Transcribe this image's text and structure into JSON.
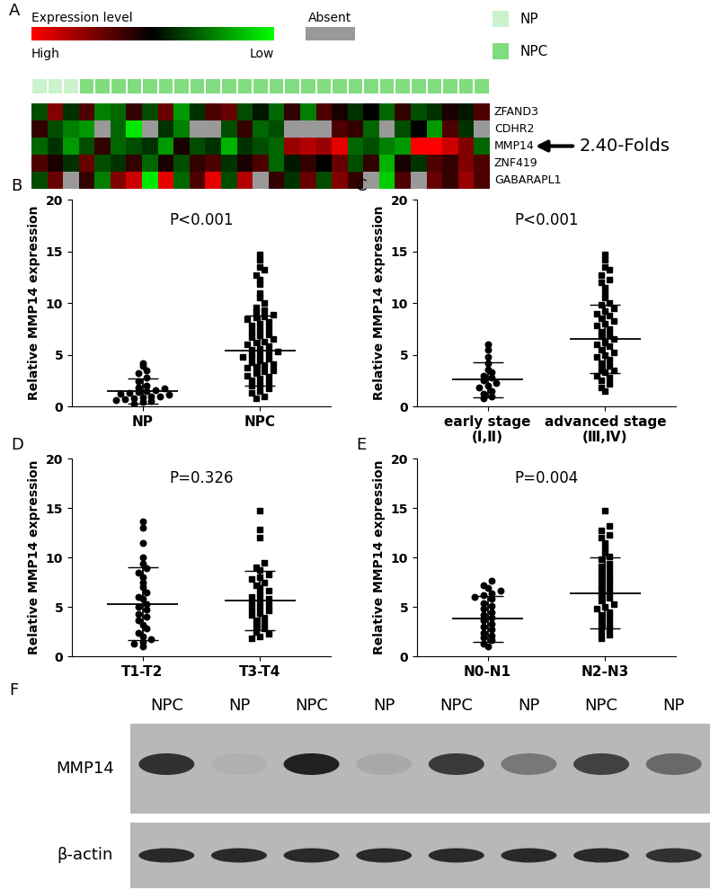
{
  "chart_data": [
    {
      "type": "heatmap",
      "panel_label": "A",
      "rows": [
        "ZFAND3",
        "CDHR2",
        "MMP14",
        "ZNF419",
        "GABARAPL1"
      ],
      "values": [
        [
          -0.3,
          0.5,
          -0.2,
          0.3,
          -0.5,
          -0.4,
          0.2,
          -0.3,
          0.4,
          -0.6,
          -0.2,
          0.3,
          0.4,
          -0.3,
          -0.1,
          -0.4,
          0.2,
          -0.5,
          0.3,
          0.1,
          -0.2,
          0.0,
          -0.4,
          0.2,
          -0.3,
          -0.2,
          0.1,
          -0.1,
          0.3
        ],
        [
          0.2,
          -0.3,
          -0.5,
          -0.6,
          null,
          -0.4,
          -0.9,
          null,
          -0.2,
          -0.5,
          null,
          null,
          -0.3,
          0.2,
          -0.4,
          -0.3,
          null,
          null,
          null,
          0.3,
          0.2,
          -0.4,
          null,
          -0.3,
          0.0,
          -0.6,
          0.3,
          -0.2,
          null
        ],
        [
          -0.4,
          -0.2,
          -0.6,
          -0.3,
          0.2,
          -0.4,
          -0.3,
          -0.2,
          -0.6,
          0.1,
          -0.3,
          -0.2,
          -0.7,
          -0.2,
          -0.3,
          -0.4,
          0.6,
          0.7,
          0.6,
          0.9,
          -0.4,
          -0.3,
          -0.5,
          -0.6,
          1.0,
          1.0,
          0.8,
          0.5,
          -0.4
        ],
        [
          0.3,
          0.1,
          -0.2,
          0.4,
          -0.3,
          -0.2,
          0.2,
          -0.4,
          0.1,
          -0.3,
          0.2,
          0.3,
          -0.2,
          0.1,
          0.3,
          -0.4,
          -0.1,
          0.2,
          0.0,
          0.4,
          -0.3,
          0.2,
          -0.7,
          0.1,
          -0.2,
          0.3,
          0.2,
          0.5,
          0.3
        ],
        [
          -0.3,
          0.4,
          null,
          0.2,
          -0.5,
          0.5,
          0.8,
          -0.9,
          0.9,
          -0.4,
          0.3,
          0.9,
          -0.3,
          0.7,
          null,
          0.2,
          -0.2,
          0.4,
          -0.3,
          0.5,
          0.2,
          null,
          -0.8,
          0.3,
          null,
          0.4,
          0.2,
          0.6,
          0.3
        ]
      ],
      "color_range": [
        -1,
        1
      ],
      "colorbar": {
        "title": "Expression level",
        "labels": [
          "High",
          "Low"
        ]
      },
      "absent_label": "Absent",
      "groups": [
        {
          "name": "NP",
          "color": "#ccf2cc"
        },
        {
          "name": "NPC",
          "color": "#7fdc7f"
        }
      ],
      "sample_groups": [
        "NP",
        "NP",
        "NP",
        "NPC",
        "NPC",
        "NPC",
        "NPC",
        "NPC",
        "NPC",
        "NPC",
        "NPC",
        "NPC",
        "NPC",
        "NPC",
        "NPC",
        "NPC",
        "NPC",
        "NPC",
        "NPC",
        "NPC",
        "NPC",
        "NPC",
        "NPC",
        "NPC",
        "NPC",
        "NPC",
        "NPC",
        "NPC",
        "NPC"
      ],
      "annotation": {
        "text": "2.40-Folds",
        "row": "MMP14"
      }
    },
    {
      "type": "dot_plot",
      "panel_label": "B",
      "categories": [
        "NP",
        "NPC"
      ],
      "ylabel": "Relative MMP14 expression",
      "ylim": [
        0,
        20
      ],
      "yticks": [
        0,
        5,
        10,
        15,
        20
      ],
      "annotation": "P<0.001",
      "color": "#000000",
      "groups": [
        {
          "marker": "circle",
          "mean": 1.5,
          "sd": 1.2,
          "values": [
            0.3,
            0.4,
            0.5,
            0.6,
            0.7,
            0.8,
            0.9,
            1.0,
            1.0,
            1.1,
            1.2,
            1.3,
            1.4,
            1.5,
            1.6,
            1.7,
            1.8,
            2.0,
            2.4,
            2.8,
            3.2,
            3.5,
            3.9,
            4.2
          ]
        },
        {
          "marker": "square",
          "mean": 5.4,
          "sd": 3.4,
          "values": [
            0.8,
            1.0,
            1.3,
            1.5,
            1.7,
            2.0,
            2.1,
            2.3,
            2.5,
            2.7,
            2.9,
            3.0,
            3.2,
            3.4,
            3.5,
            3.7,
            3.8,
            4.0,
            4.1,
            4.3,
            4.4,
            4.6,
            4.8,
            4.9,
            5.0,
            5.2,
            5.3,
            5.5,
            5.6,
            5.8,
            6.0,
            6.2,
            6.3,
            6.5,
            6.7,
            6.9,
            7.0,
            7.2,
            7.4,
            7.6,
            7.8,
            8.0,
            8.2,
            8.4,
            8.6,
            8.7,
            8.9,
            9.1,
            9.3,
            9.6,
            10.0,
            10.5,
            11.0,
            11.8,
            12.3,
            12.7,
            13.2,
            13.5,
            14.2,
            14.7
          ]
        }
      ]
    },
    {
      "type": "dot_plot",
      "panel_label": "C",
      "categories": [
        "early stage\n(Ⅰ,Ⅱ)",
        "advanced stage\n(Ⅲ,Ⅳ)"
      ],
      "ylabel": "Relative MMP14 expression",
      "ylim": [
        0,
        20
      ],
      "yticks": [
        0,
        5,
        10,
        15,
        20
      ],
      "annotation": "P<0.001",
      "color": "#000000",
      "groups": [
        {
          "marker": "circle",
          "mean": 2.6,
          "sd": 1.7,
          "values": [
            0.8,
            1.0,
            1.2,
            1.5,
            1.8,
            2.0,
            2.3,
            2.5,
            2.8,
            3.0,
            3.3,
            3.6,
            4.2,
            4.8,
            5.5,
            6.0
          ]
        },
        {
          "marker": "square",
          "mean": 6.5,
          "sd": 3.3,
          "values": [
            1.5,
            1.8,
            2.2,
            2.5,
            2.8,
            3.0,
            3.3,
            3.6,
            3.9,
            4.2,
            4.5,
            4.8,
            5.0,
            5.2,
            5.5,
            5.8,
            6.0,
            6.2,
            6.5,
            6.8,
            7.0,
            7.2,
            7.5,
            7.8,
            8.0,
            8.3,
            8.5,
            8.8,
            9.0,
            9.2,
            9.5,
            9.8,
            10.0,
            10.5,
            11.0,
            11.5,
            12.0,
            12.3,
            12.7,
            13.2,
            13.5,
            14.2,
            14.7,
            3.5
          ]
        }
      ]
    },
    {
      "type": "dot_plot",
      "panel_label": "D",
      "categories": [
        "T1-T2",
        "T3-T4"
      ],
      "ylabel": "Relative MMP14 expression",
      "ylim": [
        0,
        20
      ],
      "yticks": [
        0,
        5,
        10,
        15,
        20
      ],
      "annotation": "P=0.326",
      "color": "#000000",
      "groups": [
        {
          "marker": "circle",
          "mean": 5.3,
          "sd": 3.7,
          "values": [
            1.0,
            1.3,
            1.5,
            1.7,
            2.0,
            2.4,
            2.8,
            3.2,
            3.6,
            4.0,
            4.3,
            4.7,
            5.0,
            5.3,
            5.8,
            6.0,
            6.5,
            7.0,
            7.5,
            8.0,
            8.5,
            8.9,
            9.4,
            10.0,
            11.5,
            13.0,
            13.6
          ]
        },
        {
          "marker": "square",
          "mean": 5.6,
          "sd": 3.0,
          "values": [
            1.8,
            2.0,
            2.3,
            2.5,
            2.8,
            3.0,
            3.3,
            3.6,
            3.9,
            4.2,
            4.4,
            4.6,
            4.8,
            5.0,
            5.2,
            5.4,
            5.6,
            5.8,
            6.0,
            6.3,
            6.6,
            6.9,
            7.2,
            7.5,
            7.8,
            8.0,
            8.3,
            8.7,
            9.0,
            9.5,
            12.0,
            12.8,
            14.7
          ]
        }
      ]
    },
    {
      "type": "dot_plot",
      "panel_label": "E",
      "categories": [
        "N0-N1",
        "N2-N3"
      ],
      "ylabel": "Relative MMP14 expression",
      "ylim": [
        0,
        20
      ],
      "yticks": [
        0,
        5,
        10,
        15,
        20
      ],
      "annotation": "P=0.004",
      "color": "#000000",
      "groups": [
        {
          "marker": "circle",
          "mean": 3.8,
          "sd": 2.3,
          "values": [
            1.0,
            1.3,
            1.6,
            1.9,
            2.1,
            2.4,
            2.7,
            3.0,
            3.3,
            3.6,
            3.9,
            4.2,
            4.5,
            4.8,
            5.1,
            5.4,
            5.8,
            6.0,
            6.2,
            6.4,
            6.6,
            6.9,
            7.2,
            7.6
          ]
        },
        {
          "marker": "square",
          "mean": 6.4,
          "sd": 3.6,
          "values": [
            1.8,
            2.2,
            2.5,
            2.8,
            3.0,
            3.3,
            3.6,
            3.9,
            4.2,
            4.5,
            4.8,
            5.0,
            5.3,
            5.6,
            5.9,
            6.2,
            6.5,
            6.8,
            7.0,
            7.3,
            7.6,
            7.9,
            8.2,
            8.5,
            8.8,
            9.1,
            9.4,
            9.8,
            10.1,
            10.5,
            11.0,
            11.5,
            12.0,
            12.3,
            12.7,
            13.2,
            14.7
          ]
        }
      ]
    },
    {
      "type": "western_blot",
      "panel_label": "F",
      "lanes": [
        "NPC",
        "NP",
        "NPC",
        "NP",
        "NPC",
        "NP",
        "NPC",
        "NP"
      ],
      "rows": [
        {
          "name": "MMP14",
          "intensity": [
            0.85,
            0.05,
            0.95,
            0.1,
            0.8,
            0.4,
            0.75,
            0.5
          ]
        },
        {
          "name": "β-actin",
          "intensity": [
            0.9,
            0.9,
            0.9,
            0.9,
            0.9,
            0.9,
            0.9,
            0.85
          ]
        }
      ]
    }
  ]
}
